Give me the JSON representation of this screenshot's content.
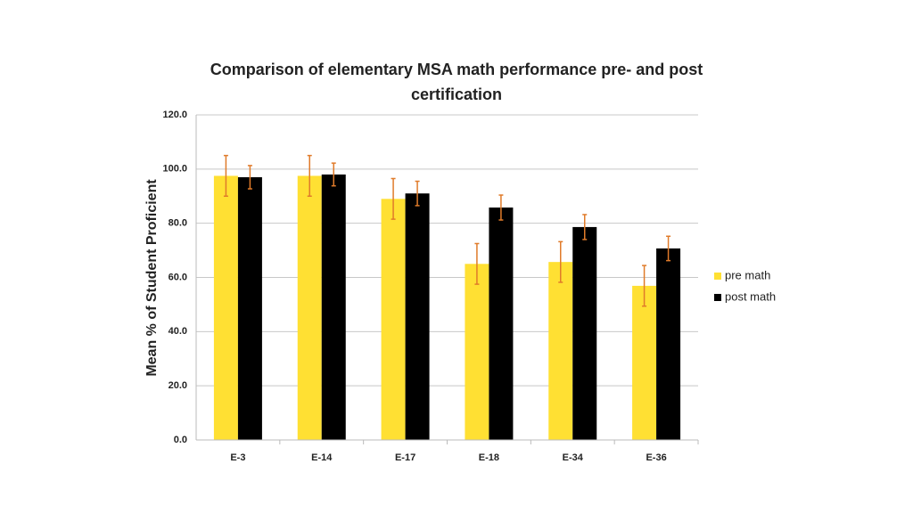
{
  "chart_data": {
    "type": "bar",
    "title": "Comparison of elementary MSA math performance pre- and post certification",
    "y_label": "Mean % of Student Proficient",
    "categories": [
      "E-3",
      "E-14",
      "E-17",
      "E-18",
      "E-34",
      "E-36"
    ],
    "series": [
      {
        "name": "pre math",
        "color": "#ffe033",
        "values": [
          97.5,
          97.5,
          89,
          65,
          65.7,
          56.9
        ],
        "errors": [
          7.5,
          7.5,
          7.5,
          7.5,
          7.5,
          7.5
        ]
      },
      {
        "name": "post math",
        "color": "#000000",
        "values": [
          97,
          98,
          91,
          85.8,
          78.6,
          70.7
        ],
        "errors": [
          4.3,
          4.2,
          4.5,
          4.6,
          4.6,
          4.5
        ]
      }
    ],
    "error_color": "#e07b2a",
    "ylim": [
      0,
      120
    ],
    "yticks": [
      {
        "value": 0,
        "label": "0.0"
      },
      {
        "value": 20,
        "label": "20.0"
      },
      {
        "value": 40,
        "label": "40.0"
      },
      {
        "value": 60,
        "label": "60.0"
      },
      {
        "value": 80,
        "label": "80.0"
      },
      {
        "value": 100,
        "label": "100.0"
      },
      {
        "value": 120,
        "label": "120.0"
      }
    ],
    "grid": true,
    "legend": "right"
  }
}
